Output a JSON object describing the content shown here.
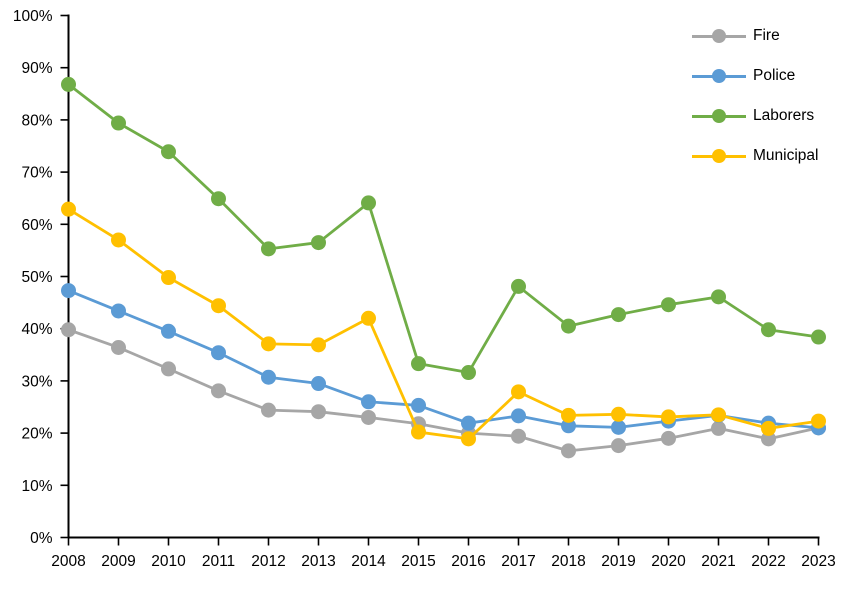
{
  "chart_data": {
    "type": "line",
    "title": "",
    "xlabel": "",
    "ylabel": "",
    "grid": false,
    "legend_position": "top-right",
    "axis_color": "#000000",
    "x_categories": [
      "2008",
      "2009",
      "2010",
      "2011",
      "2012",
      "2013",
      "2014",
      "2015",
      "2016",
      "2017",
      "2018",
      "2019",
      "2020",
      "2021",
      "2022",
      "2023"
    ],
    "y_axis": {
      "min": 0,
      "max": 100,
      "step": 10,
      "tick_labels": [
        "0%",
        "10%",
        "20%",
        "30%",
        "40%",
        "50%",
        "60%",
        "70%",
        "80%",
        "90%",
        "100%"
      ]
    },
    "series": [
      {
        "name": "Fire",
        "color": "#A6A6A6",
        "values": [
          39.8,
          36.4,
          32.3,
          28.1,
          24.4,
          24.1,
          23.0,
          21.8,
          20.0,
          19.4,
          16.6,
          17.6,
          19.0,
          20.9,
          18.9,
          21.0
        ]
      },
      {
        "name": "Police",
        "color": "#5B9BD5",
        "values": [
          47.3,
          43.4,
          39.5,
          35.4,
          30.7,
          29.5,
          26.0,
          25.3,
          21.9,
          23.3,
          21.4,
          21.1,
          22.3,
          23.4,
          21.9,
          21.0
        ]
      },
      {
        "name": "Laborers",
        "color": "#70AD47",
        "values": [
          86.8,
          79.4,
          73.9,
          64.9,
          55.3,
          56.5,
          64.1,
          33.3,
          31.6,
          48.1,
          40.5,
          42.7,
          44.6,
          46.1,
          39.8,
          38.4
        ]
      },
      {
        "name": "Municipal",
        "color": "#FFC000",
        "values": [
          62.9,
          57.0,
          49.8,
          44.4,
          37.1,
          36.9,
          42.0,
          20.2,
          18.9,
          27.9,
          23.4,
          23.6,
          23.1,
          23.5,
          20.9,
          22.3
        ]
      }
    ]
  }
}
